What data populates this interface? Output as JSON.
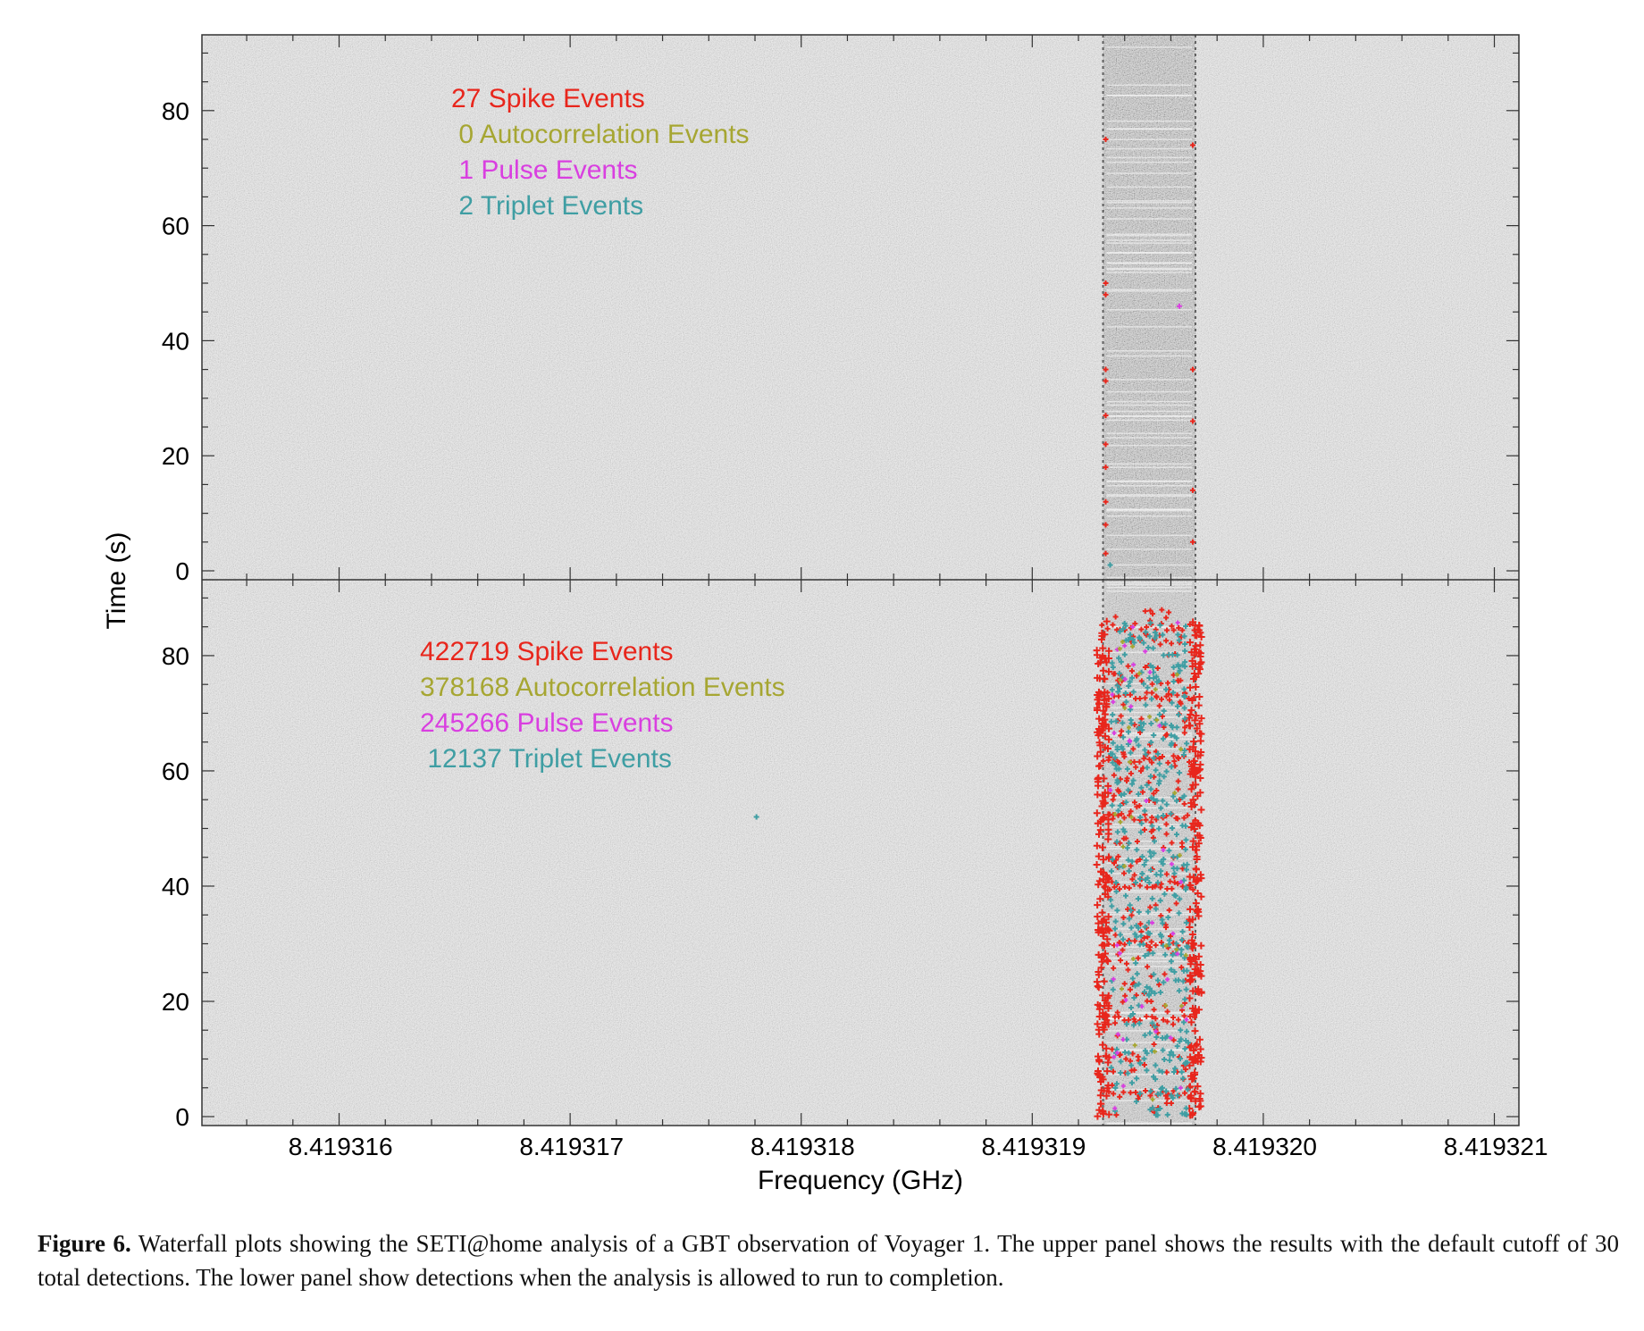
{
  "chart_data": {
    "type": "scatter",
    "xlabel": "Frequency (GHz)",
    "ylabel": "Time (s)",
    "x_ticks": [
      "8.419316",
      "8.419317",
      "8.419318",
      "8.419319",
      "8.419320",
      "8.419321"
    ],
    "x_tick_values": [
      8.419316,
      8.419317,
      8.419318,
      8.419319,
      8.41932,
      8.419321
    ],
    "xlim": [
      8.4193154,
      8.4193211
    ],
    "y_ticks": [
      "0",
      "20",
      "40",
      "60",
      "80"
    ],
    "y_tick_values": [
      0,
      20,
      40,
      60,
      80
    ],
    "ylim": [
      -2,
      91
    ],
    "signal_band": [
      8.4193193,
      8.4193197
    ],
    "background": "noise-grey",
    "colors": {
      "spike": "#e8261c",
      "autocorrelation": "#a6a632",
      "pulse": "#d93fe0",
      "triplet": "#3f9ea3"
    },
    "panels": [
      {
        "name": "upper",
        "legend": [
          {
            "kind": "spike",
            "text": "27 Spike Events"
          },
          {
            "kind": "autocorrelation",
            "text": " 0 Autocorrelation Events"
          },
          {
            "kind": "pulse",
            "text": " 1 Pulse Events"
          },
          {
            "kind": "triplet",
            "text": " 2 Triplet Events"
          }
        ]
      },
      {
        "name": "lower",
        "legend": [
          {
            "kind": "spike",
            "text": "422719 Spike Events"
          },
          {
            "kind": "autocorrelation",
            "text": "378168 Autocorrelation Events"
          },
          {
            "kind": "pulse",
            "text": "245266 Pulse Events"
          },
          {
            "kind": "triplet",
            "text": " 12137 Triplet Events"
          }
        ]
      }
    ]
  },
  "caption": {
    "label": "Figure 6.",
    "text": " Waterfall plots showing the SETI@home analysis of a GBT observation of Voyager 1. The upper panel shows the results with the default cutoff of 30 total detections. The lower panel show detections when the analysis is allowed to run to completion."
  }
}
